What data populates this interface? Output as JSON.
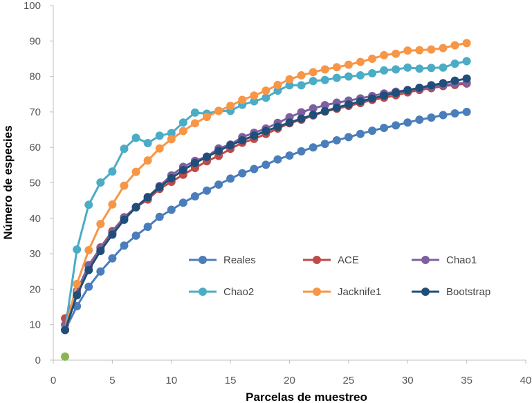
{
  "chart_data": {
    "type": "line",
    "title": "",
    "xlabel": "Parcelas de muestreo",
    "ylabel": "Número de especies",
    "xlim": [
      0,
      40
    ],
    "ylim": [
      0,
      100
    ],
    "xticks": [
      0,
      5,
      10,
      15,
      20,
      25,
      30,
      35,
      40
    ],
    "yticks": [
      0,
      10,
      20,
      30,
      40,
      50,
      60,
      70,
      80,
      90,
      100
    ],
    "grid": false,
    "legend_position": "center-right",
    "series": [
      {
        "name": "Reales",
        "color": "#4a7ebb",
        "x": [
          1,
          2,
          3,
          4,
          5,
          6,
          7,
          8,
          9,
          10,
          11,
          12,
          13,
          14,
          15,
          16,
          17,
          18,
          19,
          20,
          21,
          22,
          23,
          24,
          25,
          26,
          27,
          28,
          29,
          30,
          31,
          32,
          33,
          34,
          35
        ],
        "values": [
          8.5,
          15.2,
          20.7,
          25,
          28.7,
          32.3,
          35.1,
          37.6,
          40.4,
          42.4,
          44.4,
          46.2,
          47.8,
          49.5,
          51.2,
          52.7,
          53.9,
          55.1,
          56.6,
          57.7,
          58.9,
          60,
          61,
          62,
          62.9,
          63.8,
          64.7,
          65.5,
          66.2,
          67,
          67.8,
          68.4,
          69.1,
          69.6,
          70
        ]
      },
      {
        "name": "ACE",
        "color": "#be4b48",
        "x": [
          1,
          2,
          3,
          4,
          5,
          6,
          7,
          8,
          9,
          10,
          11,
          12,
          13,
          14,
          15,
          16,
          17,
          18,
          19,
          20,
          21,
          22,
          23,
          24,
          25,
          26,
          27,
          28,
          29,
          30,
          31,
          32,
          33,
          34,
          35
        ],
        "values": [
          11.8,
          19,
          26.5,
          31.8,
          36.4,
          40.3,
          43.1,
          45.3,
          48.3,
          50.3,
          52.3,
          54.2,
          56.1,
          57.6,
          59.6,
          61.3,
          62.4,
          63.8,
          65.3,
          66.8,
          67.8,
          69,
          70.1,
          70.9,
          71.7,
          72.5,
          73.4,
          74,
          74.7,
          75.5,
          76.2,
          76.7,
          77.3,
          77.6,
          78
        ]
      },
      {
        "name": "Chao1",
        "color": "#7d60a0",
        "x": [
          1,
          2,
          3,
          4,
          5,
          6,
          7,
          8,
          9,
          10,
          11,
          12,
          13,
          14,
          15,
          16,
          17,
          18,
          19,
          20,
          21,
          22,
          23,
          24,
          25,
          26,
          27,
          28,
          29,
          30,
          31,
          32,
          33,
          34,
          35
        ],
        "values": [
          10,
          19.5,
          26.8,
          31.6,
          36,
          40.2,
          43.2,
          46,
          49.1,
          52.1,
          54.5,
          56.2,
          57.4,
          59.7,
          60.8,
          62.9,
          64.1,
          65.3,
          66.9,
          68.5,
          69.9,
          71,
          71.9,
          72.6,
          73.2,
          73.8,
          74.5,
          75.2,
          75.7,
          76.2,
          76.6,
          77.1,
          77.6,
          77.9,
          78.2
        ]
      },
      {
        "name": "Chao2",
        "color": "#4bacc6",
        "x": [
          1,
          2,
          3,
          4,
          5,
          6,
          7,
          8,
          9,
          10,
          11,
          12,
          13,
          14,
          15,
          16,
          17,
          18,
          19,
          20,
          21,
          22,
          23,
          24,
          25,
          26,
          27,
          28,
          29,
          30,
          31,
          32,
          33,
          34,
          35
        ],
        "values": [
          8.6,
          31.2,
          43.8,
          50.1,
          53.2,
          59.6,
          62.7,
          61.2,
          63.3,
          64,
          67,
          69.8,
          69.5,
          70.3,
          70.3,
          72,
          73,
          74,
          76,
          77.5,
          77.5,
          78.7,
          79,
          79.6,
          80,
          80.3,
          80.9,
          81.7,
          82,
          82.5,
          82.2,
          82.4,
          82.5,
          83.6,
          84.3
        ]
      },
      {
        "name": "Jacknife1",
        "color": "#f79646",
        "x": [
          1,
          2,
          3,
          4,
          5,
          6,
          7,
          8,
          9,
          10,
          11,
          12,
          13,
          14,
          15,
          16,
          17,
          18,
          19,
          20,
          21,
          22,
          23,
          24,
          25,
          26,
          27,
          28,
          29,
          30,
          31,
          32,
          33,
          34,
          35
        ],
        "values": [
          8.6,
          21.5,
          31,
          38.4,
          43.9,
          49.2,
          53.1,
          56.3,
          59.7,
          62.3,
          64.6,
          66.8,
          68.6,
          70.3,
          71.7,
          73.4,
          74.6,
          76,
          77.6,
          79.2,
          80.3,
          81.2,
          82,
          82.6,
          83.3,
          84.1,
          85,
          86,
          86.4,
          87.3,
          87.4,
          87.6,
          88,
          88.8,
          89.4
        ]
      },
      {
        "name": "Bootstrap",
        "color": "#1f4e79",
        "x": [
          1,
          2,
          3,
          4,
          5,
          6,
          7,
          8,
          9,
          10,
          11,
          12,
          13,
          14,
          15,
          16,
          17,
          18,
          19,
          20,
          21,
          22,
          23,
          24,
          25,
          26,
          27,
          28,
          29,
          30,
          31,
          32,
          33,
          34,
          35
        ],
        "values": [
          8.5,
          18.3,
          25.4,
          30.8,
          35.4,
          39.6,
          43.1,
          45.9,
          48.8,
          51.3,
          53.6,
          55.6,
          57.3,
          59,
          60.6,
          62,
          63.3,
          64.6,
          65.8,
          67,
          68.1,
          69.2,
          70.2,
          71.2,
          72.1,
          73,
          73.8,
          74.6,
          75.4,
          76.1,
          76.8,
          77.5,
          78.1,
          78.8,
          79.4
        ]
      },
      {
        "name": "",
        "color": "#8ab552",
        "x": [
          1
        ],
        "values": [
          1
        ],
        "show_in_legend": false
      }
    ]
  }
}
